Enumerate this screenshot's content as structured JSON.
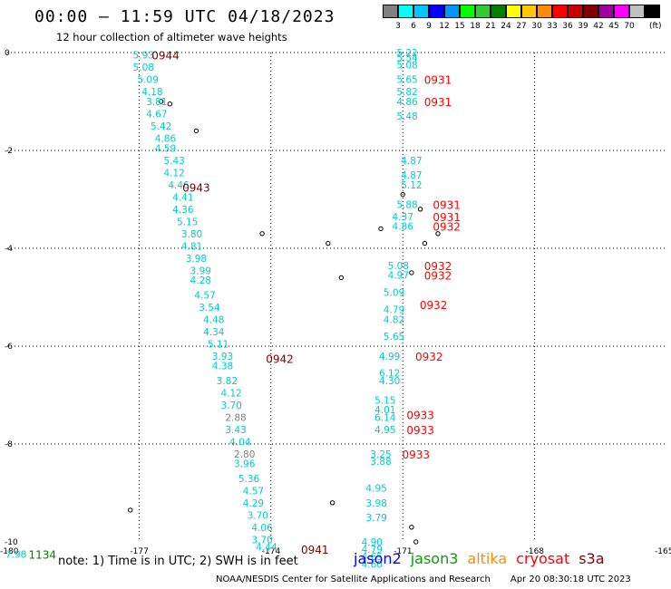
{
  "title": "00:00 — 11:59 UTC 04/18/2023",
  "subtitle": "12 hour collection of altimeter wave heights",
  "legend": {
    "unit": "(ft)",
    "bins": [
      {
        "color": "#808080",
        "label": ""
      },
      {
        "color": "#00ffff",
        "label": "3"
      },
      {
        "color": "#00c8ff",
        "label": "6"
      },
      {
        "color": "#0000ff",
        "label": "9"
      },
      {
        "color": "#0096ff",
        "label": "12"
      },
      {
        "color": "#00ff00",
        "label": "15"
      },
      {
        "color": "#32cd32",
        "label": "18"
      },
      {
        "color": "#008000",
        "label": "21"
      },
      {
        "color": "#ffff00",
        "label": "24"
      },
      {
        "color": "#ffc800",
        "label": "27"
      },
      {
        "color": "#ff8c00",
        "label": "30"
      },
      {
        "color": "#ff0000",
        "label": "33"
      },
      {
        "color": "#c80000",
        "label": "36"
      },
      {
        "color": "#800000",
        "label": "39"
      },
      {
        "color": "#a000a0",
        "label": "42"
      },
      {
        "color": "#ff00ff",
        "label": "45"
      },
      {
        "color": "#c0c0c0",
        "label": "70"
      },
      {
        "color": "#000000",
        "label": ""
      }
    ]
  },
  "axes": {
    "lon_ticks": [
      "-180",
      "-177",
      "-174",
      "-171",
      "-168",
      "-165"
    ],
    "lat_ticks": [
      "0",
      "-2",
      "-4",
      "-6",
      "-8",
      "-10"
    ],
    "lon_range": [
      -180,
      -165
    ],
    "lat_range": [
      -10,
      0
    ]
  },
  "chart_data": {
    "type": "scatter",
    "tracks": [
      {
        "name": "track-1",
        "color": "#00cccc",
        "values": [
          {
            "lon": -176.9,
            "lat": -0.05,
            "v": "5.93"
          },
          {
            "lon": -176.9,
            "lat": -0.3,
            "v": "5.08"
          },
          {
            "lon": -176.8,
            "lat": -0.55,
            "v": "5.09"
          },
          {
            "lon": -176.7,
            "lat": -0.8,
            "v": "4.18"
          },
          {
            "lon": -176.6,
            "lat": -1.0,
            "v": "3.81"
          },
          {
            "lon": -176.6,
            "lat": -1.25,
            "v": "4.67"
          },
          {
            "lon": -176.5,
            "lat": -1.5,
            "v": "5.42"
          },
          {
            "lon": -176.4,
            "lat": -1.75,
            "v": "4.86"
          },
          {
            "lon": -176.4,
            "lat": -1.95,
            "v": "4.59"
          },
          {
            "lon": -176.2,
            "lat": -2.2,
            "v": "5.43"
          },
          {
            "lon": -176.2,
            "lat": -2.45,
            "v": "4.12"
          },
          {
            "lon": -176.1,
            "lat": -2.7,
            "v": "4.46"
          },
          {
            "lon": -176.0,
            "lat": -2.95,
            "v": "4.41"
          },
          {
            "lon": -176.0,
            "lat": -3.2,
            "v": "4.36"
          },
          {
            "lon": -175.9,
            "lat": -3.45,
            "v": "5.15"
          },
          {
            "lon": -175.8,
            "lat": -3.7,
            "v": "3.80"
          },
          {
            "lon": -175.8,
            "lat": -3.95,
            "v": "4.81"
          },
          {
            "lon": -175.7,
            "lat": -4.2,
            "v": "3.98"
          },
          {
            "lon": -175.6,
            "lat": -4.45,
            "v": "3.99"
          },
          {
            "lon": -175.6,
            "lat": -4.65,
            "v": "4.28"
          },
          {
            "lon": -175.5,
            "lat": -4.95,
            "v": "4.57"
          },
          {
            "lon": -175.4,
            "lat": -5.2,
            "v": "3.54"
          },
          {
            "lon": -175.3,
            "lat": -5.45,
            "v": "4.48"
          },
          {
            "lon": -175.3,
            "lat": -5.7,
            "v": "4.34"
          },
          {
            "lon": -175.2,
            "lat": -5.95,
            "v": "5.11"
          },
          {
            "lon": -175.1,
            "lat": -6.2,
            "v": "3.93"
          },
          {
            "lon": -175.1,
            "lat": -6.4,
            "v": "4.38"
          },
          {
            "lon": -175.0,
            "lat": -6.7,
            "v": "3.82"
          },
          {
            "lon": -174.9,
            "lat": -6.95,
            "v": "4.12"
          },
          {
            "lon": -174.9,
            "lat": -7.2,
            "v": "3.70"
          },
          {
            "lon": -174.8,
            "lat": -7.45,
            "v": "2.88",
            "gray": true
          },
          {
            "lon": -174.8,
            "lat": -7.7,
            "v": "3.43"
          },
          {
            "lon": -174.7,
            "lat": -7.95,
            "v": "4.04"
          },
          {
            "lon": -174.6,
            "lat": -8.2,
            "v": "2.80",
            "gray": true
          },
          {
            "lon": -174.6,
            "lat": -8.4,
            "v": "3.96"
          },
          {
            "lon": -174.5,
            "lat": -8.7,
            "v": "5.36"
          },
          {
            "lon": -174.4,
            "lat": -8.95,
            "v": "4.57"
          },
          {
            "lon": -174.4,
            "lat": -9.2,
            "v": "4.29"
          },
          {
            "lon": -174.3,
            "lat": -9.45,
            "v": "3.70"
          },
          {
            "lon": -174.2,
            "lat": -9.7,
            "v": "4.06"
          },
          {
            "lon": -174.2,
            "lat": -9.95,
            "v": "3.70"
          },
          {
            "lon": -174.1,
            "lat": -10.1,
            "v": "4.44"
          }
        ]
      },
      {
        "name": "track-2",
        "color": "#00cccc",
        "values": [
          {
            "lon": -170.9,
            "lat": 0.0,
            "v": "5.22"
          },
          {
            "lon": -170.9,
            "lat": -0.1,
            "v": "5.54"
          },
          {
            "lon": -170.9,
            "lat": -0.25,
            "v": "5.08"
          },
          {
            "lon": -170.9,
            "lat": -0.55,
            "v": "5.65"
          },
          {
            "lon": -170.9,
            "lat": -0.8,
            "v": "5.82"
          },
          {
            "lon": -170.9,
            "lat": -1.0,
            "v": "4.86"
          },
          {
            "lon": -170.9,
            "lat": -1.3,
            "v": "5.48"
          },
          {
            "lon": -170.8,
            "lat": -2.2,
            "v": "4.87"
          },
          {
            "lon": -170.8,
            "lat": -2.5,
            "v": "4.87"
          },
          {
            "lon": -170.8,
            "lat": -2.7,
            "v": "5.12"
          },
          {
            "lon": -170.9,
            "lat": -3.1,
            "v": "5.88"
          },
          {
            "lon": -171.0,
            "lat": -3.35,
            "v": "4.37"
          },
          {
            "lon": -171.0,
            "lat": -3.55,
            "v": "4.86"
          },
          {
            "lon": -171.1,
            "lat": -4.35,
            "v": "5.08"
          },
          {
            "lon": -171.1,
            "lat": -4.55,
            "v": "4.97"
          },
          {
            "lon": -171.2,
            "lat": -4.9,
            "v": "5.09"
          },
          {
            "lon": -171.2,
            "lat": -5.25,
            "v": "4.79"
          },
          {
            "lon": -171.2,
            "lat": -5.45,
            "v": "4.82"
          },
          {
            "lon": -171.2,
            "lat": -5.8,
            "v": "5.65"
          },
          {
            "lon": -171.3,
            "lat": -6.2,
            "v": "4.99"
          },
          {
            "lon": -171.3,
            "lat": -6.55,
            "v": "6.12"
          },
          {
            "lon": -171.3,
            "lat": -6.7,
            "v": "4.30"
          },
          {
            "lon": -171.4,
            "lat": -7.1,
            "v": "5.15"
          },
          {
            "lon": -171.4,
            "lat": -7.3,
            "v": "4.01"
          },
          {
            "lon": -171.4,
            "lat": -7.45,
            "v": "6.14"
          },
          {
            "lon": -171.4,
            "lat": -7.7,
            "v": "4.95"
          },
          {
            "lon": -171.5,
            "lat": -8.2,
            "v": "3.25"
          },
          {
            "lon": -171.5,
            "lat": -8.35,
            "v": "3.88"
          },
          {
            "lon": -171.6,
            "lat": -8.9,
            "v": "4.95"
          },
          {
            "lon": -171.6,
            "lat": -9.2,
            "v": "3.98"
          },
          {
            "lon": -171.6,
            "lat": -9.5,
            "v": "3.79"
          },
          {
            "lon": -171.7,
            "lat": -10.0,
            "v": "4.90"
          },
          {
            "lon": -171.7,
            "lat": -10.15,
            "v": "4.79"
          },
          {
            "lon": -171.7,
            "lat": -10.3,
            "v": "4.65"
          },
          {
            "lon": -171.7,
            "lat": -10.45,
            "v": "4.60"
          }
        ]
      },
      {
        "name": "track-3",
        "color": "#00cccc",
        "values": [
          {
            "lon": -179.8,
            "lat": -10.25,
            "v": "7.98"
          }
        ]
      }
    ],
    "times": [
      {
        "lon": -176.4,
        "lat": -0.05,
        "t": "0944",
        "color": "#800000"
      },
      {
        "lon": -175.7,
        "lat": -2.75,
        "t": "0943",
        "color": "#800000"
      },
      {
        "lon": -173.8,
        "lat": -6.25,
        "t": "0942",
        "color": "#800000"
      },
      {
        "lon": -173.0,
        "lat": -10.15,
        "t": "0941",
        "color": "#800000"
      },
      {
        "lon": -170.2,
        "lat": -0.55,
        "t": "0931",
        "color": "#ff0000"
      },
      {
        "lon": -170.2,
        "lat": -1.0,
        "t": "0931",
        "color": "#ff0000"
      },
      {
        "lon": -170.0,
        "lat": -3.1,
        "t": "0931",
        "color": "#ff0000"
      },
      {
        "lon": -170.0,
        "lat": -3.35,
        "t": "0931",
        "color": "#ff0000"
      },
      {
        "lon": -170.0,
        "lat": -3.55,
        "t": "0932",
        "color": "#ff0000"
      },
      {
        "lon": -170.2,
        "lat": -4.35,
        "t": "0932",
        "color": "#ff0000"
      },
      {
        "lon": -170.2,
        "lat": -4.55,
        "t": "0932",
        "color": "#ff0000"
      },
      {
        "lon": -170.3,
        "lat": -5.15,
        "t": "0932",
        "color": "#ff0000"
      },
      {
        "lon": -170.4,
        "lat": -6.2,
        "t": "0932",
        "color": "#ff0000"
      },
      {
        "lon": -170.6,
        "lat": -7.4,
        "t": "0933",
        "color": "#ff0000"
      },
      {
        "lon": -170.6,
        "lat": -7.7,
        "t": "0933",
        "color": "#ff0000"
      },
      {
        "lon": -170.7,
        "lat": -8.2,
        "t": "0933",
        "color": "#ff0000"
      },
      {
        "lon": -179.2,
        "lat": -10.25,
        "t": "1134",
        "color": "#008000"
      }
    ]
  },
  "note": "note:  1) Time is in UTC; 2) SWH is in feet",
  "satellites": [
    {
      "name": "jason2",
      "color": "#0000ff"
    },
    {
      "name": "jason3",
      "color": "#00a000"
    },
    {
      "name": "altika",
      "color": "#ff8c00"
    },
    {
      "name": "cryosat",
      "color": "#ff0000"
    },
    {
      "name": "s3a",
      "color": "#800000"
    }
  ],
  "credit": {
    "org": "NOAA/NESDIS Center for Satellite Applications and Research",
    "timestamp": "Apr 20 08:30:18 UTC 2023"
  }
}
